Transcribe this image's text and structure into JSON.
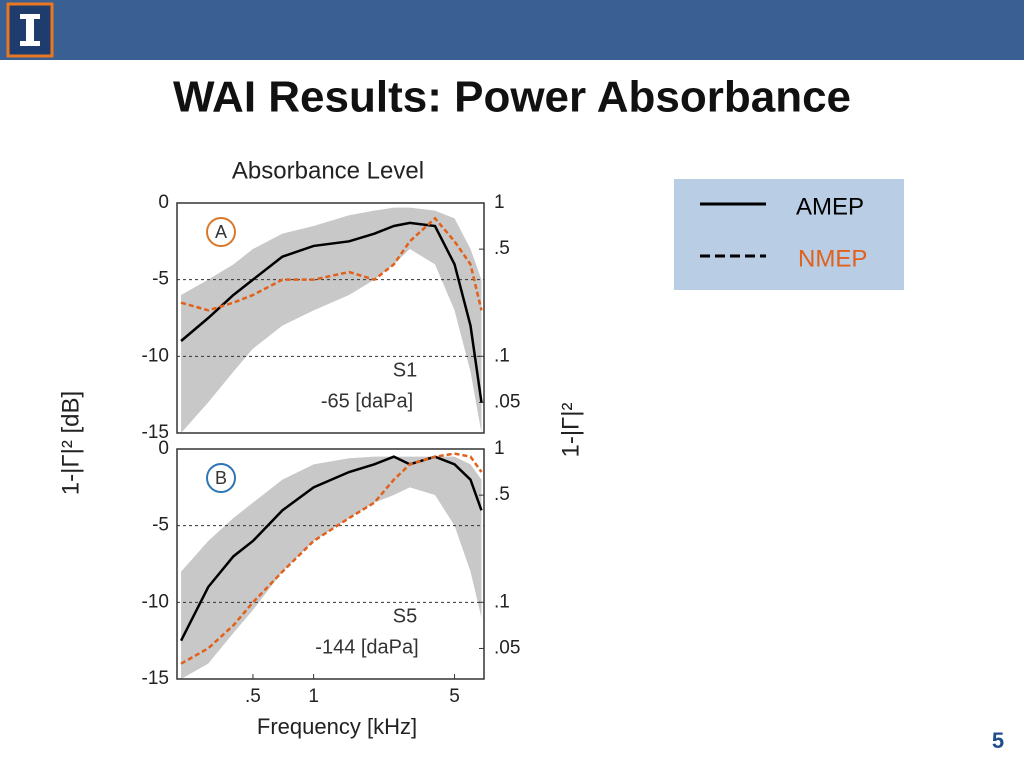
{
  "slide": {
    "title": "WAI Results: Power Absorbance",
    "page_number": "5"
  },
  "chart_data": [
    {
      "type": "line",
      "title": "Absorbance Level",
      "ylabel": "1-|Γ|² [dB]",
      "y2label": "1-|Γ|²",
      "panel_label": "A",
      "panel_label_color": "#d9782a",
      "annotations": [
        "S1",
        "-65 [daPa]"
      ],
      "xscale": "log",
      "xlim": [
        0.21,
        7
      ],
      "x": [
        0.22,
        0.3,
        0.4,
        0.5,
        0.7,
        1,
        1.5,
        2,
        2.5,
        3,
        4,
        5,
        6,
        6.8
      ],
      "ylim": [
        -15,
        0
      ],
      "yticks": [
        0,
        -5,
        -10,
        -15
      ],
      "grid": true,
      "y2scale": "log",
      "y2lim": [
        0.0316,
        1
      ],
      "y2ticks": [
        1,
        {
          "value": 0.5,
          "label": ".5"
        },
        {
          "value": 0.1,
          "label": ".1"
        },
        {
          "value": 0.05,
          "label": ".05"
        }
      ],
      "band": {
        "color": "#c8c8c8",
        "upper": [
          -6,
          -5,
          -4,
          -3,
          -2,
          -1.5,
          -0.8,
          -0.5,
          -0.3,
          -0.3,
          -0.5,
          -1,
          -3,
          -5
        ],
        "lower": [
          -15,
          -13,
          -11,
          -9.5,
          -8,
          -7,
          -6,
          -5,
          -4,
          -3,
          -4,
          -7,
          -11,
          -15
        ]
      },
      "series": [
        {
          "name": "AMEP",
          "color": "#000000",
          "dash": "solid",
          "values": [
            -9,
            -7.5,
            -6,
            -5,
            -3.5,
            -2.8,
            -2.5,
            -2,
            -1.5,
            -1.3,
            -1.5,
            -4,
            -8,
            -13
          ]
        },
        {
          "name": "NMEP",
          "color": "#e0601c",
          "dash": "dashed",
          "values": [
            -6.5,
            -7,
            -6.5,
            -6,
            -5,
            -5,
            -4.5,
            -5,
            -4,
            -2.5,
            -1,
            -2.5,
            -4,
            -7
          ]
        }
      ]
    },
    {
      "type": "line",
      "xlabel": "Frequency [kHz]",
      "panel_label": "B",
      "panel_label_color": "#2e75b6",
      "annotations": [
        "S5",
        "-144 [daPa]"
      ],
      "xscale": "log",
      "xlim": [
        0.21,
        7
      ],
      "xticks": [
        {
          "value": 0.5,
          "label": ".5"
        },
        1,
        5
      ],
      "x": [
        0.22,
        0.3,
        0.4,
        0.5,
        0.7,
        1,
        1.5,
        2,
        2.5,
        3,
        4,
        5,
        6,
        6.8
      ],
      "ylim": [
        -15,
        0
      ],
      "yticks": [
        0,
        -5,
        -10,
        -15
      ],
      "grid": true,
      "y2scale": "log",
      "y2lim": [
        0.0316,
        1
      ],
      "y2ticks": [
        1,
        {
          "value": 0.5,
          "label": ".5"
        },
        {
          "value": 0.1,
          "label": ".1"
        },
        {
          "value": 0.05,
          "label": ".05"
        }
      ],
      "band": {
        "color": "#c8c8c8",
        "upper": [
          -8,
          -6,
          -4.5,
          -3.5,
          -2,
          -1,
          -0.6,
          -0.5,
          -0.5,
          -0.5,
          -0.5,
          -0.5,
          -1,
          -2
        ],
        "lower": [
          -15,
          -14,
          -12,
          -10.5,
          -8,
          -6,
          -4.5,
          -3.5,
          -3,
          -2.5,
          -3,
          -5,
          -8,
          -11
        ]
      },
      "series": [
        {
          "name": "AMEP",
          "color": "#000000",
          "dash": "solid",
          "values": [
            -12.5,
            -9,
            -7,
            -6,
            -4,
            -2.5,
            -1.5,
            -1,
            -0.5,
            -1,
            -0.5,
            -1,
            -2,
            -4
          ]
        },
        {
          "name": "NMEP",
          "color": "#e0601c",
          "dash": "dashed",
          "values": [
            -14,
            -13,
            -11.5,
            -10,
            -8,
            -6,
            -4.5,
            -3.5,
            -2,
            -1,
            -0.5,
            -0.3,
            -0.5,
            -1.5
          ]
        }
      ]
    }
  ]
}
